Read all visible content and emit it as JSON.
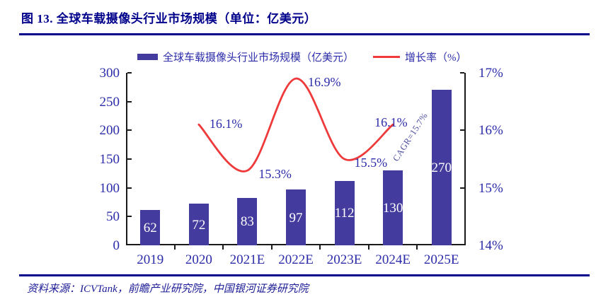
{
  "figure": {
    "title": "图 13. 全球车载摄像头行业市场规模（单位：亿美元）",
    "source": "资料来源：ICVTank，前瞻产业研究院，中国银河证券研究院"
  },
  "colors": {
    "title_navy": "#00008b",
    "axis_text_blue": "#2c2caa",
    "bar_fill": "#443b9e",
    "line_red": "#ee3a3a",
    "bar_value_text": "#ffffff",
    "annotation_blue": "#4a4aa0"
  },
  "chart_data": {
    "type": "bar+line",
    "categories": [
      "2019",
      "2020",
      "2021E",
      "2022E",
      "2023E",
      "2024E",
      "2025E"
    ],
    "series": [
      {
        "name": "全球车载摄像头行业市场规模（亿美元）",
        "type": "bar",
        "axis": "left",
        "color": "#443b9e",
        "values": [
          62,
          72,
          83,
          97,
          112,
          130,
          270
        ],
        "value_labels": [
          "62",
          "72",
          "83",
          "97",
          "112",
          "130",
          "270"
        ]
      },
      {
        "name": "增长率（%）",
        "type": "line",
        "axis": "right",
        "color": "#ee3a3a",
        "x": [
          "2020",
          "2021E",
          "2022E",
          "2023E",
          "2024E"
        ],
        "values": [
          16.1,
          15.3,
          16.9,
          15.5,
          16.1
        ],
        "value_labels": [
          "16.1%",
          "15.3%",
          "16.9%",
          "15.5%",
          "16.1%"
        ]
      }
    ],
    "left_axis": {
      "min": 0,
      "max": 300,
      "ticks": [
        "0",
        "50",
        "100",
        "150",
        "200",
        "250",
        "300"
      ]
    },
    "right_axis": {
      "min": 14,
      "max": 17,
      "ticks": [
        "14%",
        "15%",
        "16%",
        "17%"
      ]
    },
    "annotation": "CAGR=15.7%",
    "legend_position": "top",
    "grid": false
  }
}
